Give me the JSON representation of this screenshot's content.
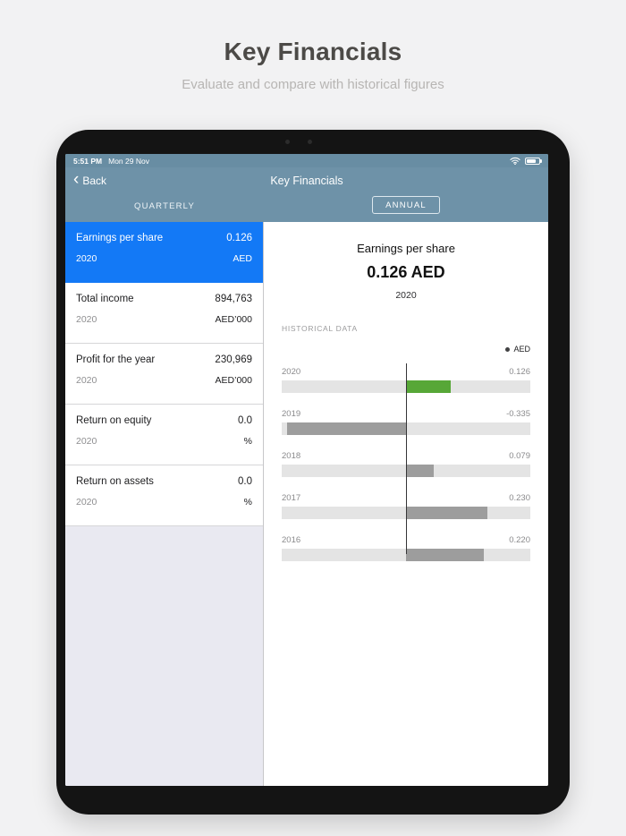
{
  "page": {
    "title": "Key Financials",
    "subtitle": "Evaluate and compare with historical figures"
  },
  "statusbar": {
    "time": "5:51 PM",
    "date": "Mon 29 Nov"
  },
  "navbar": {
    "back_label": "Back",
    "back_chevron": "‹",
    "title": "Key Financials"
  },
  "tabs": {
    "quarterly_label": "QUARTERLY",
    "annual_label": "ANNUAL",
    "selected": "ANNUAL"
  },
  "metrics": [
    {
      "title": "Earnings per share",
      "value": "0.126",
      "year": "2020",
      "unit": "AED",
      "selected": true
    },
    {
      "title": "Total income",
      "value": "894,763",
      "year": "2020",
      "unit": "AED’000",
      "selected": false
    },
    {
      "title": "Profit for the year",
      "value": "230,969",
      "year": "2020",
      "unit": "AED’000",
      "selected": false
    },
    {
      "title": "Return on equity",
      "value": "0.0",
      "year": "2020",
      "unit": "%",
      "selected": false
    },
    {
      "title": "Return on assets",
      "value": "0.0",
      "year": "2020",
      "unit": "%",
      "selected": false
    }
  ],
  "detail": {
    "title": "Earnings per share",
    "value": "0.126 AED",
    "year": "2020",
    "section_label": "HISTORICAL DATA",
    "legend_label": "AED"
  },
  "chart_data": {
    "type": "bar",
    "orientation": "horizontal",
    "title": "Earnings per share - historical data",
    "categories": [
      "2020",
      "2019",
      "2018",
      "2017",
      "2016"
    ],
    "values": [
      0.126,
      -0.335,
      0.079,
      0.23,
      0.22
    ],
    "value_labels": [
      "0.126",
      "-0.335",
      "0.079",
      "0.230",
      "0.220"
    ],
    "bar_colors": [
      "#57a737",
      "#9d9d9d",
      "#9d9d9d",
      "#9d9d9d",
      "#9d9d9d"
    ],
    "track_color": "#e4e4e4",
    "zero_line": true,
    "xlim": [
      -0.35,
      0.35
    ],
    "legend": "AED",
    "legend_position": "top-right"
  },
  "colors": {
    "header_teal": "#6e92a8",
    "accent_blue": "#1379f6",
    "green_bar": "#57a737",
    "gray_bar": "#9d9d9d"
  }
}
